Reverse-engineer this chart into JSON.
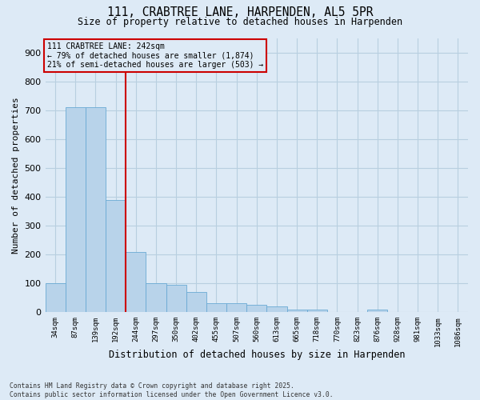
{
  "title_line1": "111, CRABTREE LANE, HARPENDEN, AL5 5PR",
  "title_line2": "Size of property relative to detached houses in Harpenden",
  "xlabel": "Distribution of detached houses by size in Harpenden",
  "ylabel": "Number of detached properties",
  "categories": [
    "34sqm",
    "87sqm",
    "139sqm",
    "192sqm",
    "244sqm",
    "297sqm",
    "350sqm",
    "402sqm",
    "455sqm",
    "507sqm",
    "560sqm",
    "613sqm",
    "665sqm",
    "718sqm",
    "770sqm",
    "823sqm",
    "876sqm",
    "928sqm",
    "981sqm",
    "1033sqm",
    "1086sqm"
  ],
  "values": [
    100,
    710,
    710,
    390,
    210,
    100,
    95,
    70,
    32,
    32,
    25,
    20,
    10,
    8,
    0,
    0,
    8,
    0,
    0,
    0,
    0
  ],
  "bar_color": "#b8d3ea",
  "bar_edge_color": "#6aaad4",
  "background_color": "#ddeaf6",
  "grid_color": "#b8cfe0",
  "vline_color": "#cc0000",
  "annotation_box_color": "#cc0000",
  "annotation_text_line1": "111 CRABTREE LANE: 242sqm",
  "annotation_text_line2": "← 79% of detached houses are smaller (1,874)",
  "annotation_text_line3": "21% of semi-detached houses are larger (503) →",
  "footer_line1": "Contains HM Land Registry data © Crown copyright and database right 2025.",
  "footer_line2": "Contains public sector information licensed under the Open Government Licence v3.0.",
  "ylim": [
    0,
    950
  ],
  "yticks": [
    0,
    100,
    200,
    300,
    400,
    500,
    600,
    700,
    800,
    900
  ],
  "vline_bar_index": 4
}
